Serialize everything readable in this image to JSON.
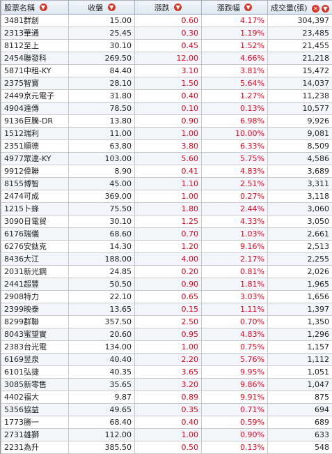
{
  "headers": {
    "name": "股票名稱",
    "close": "收盤",
    "change": "漲跌",
    "pct": "漲跌幅",
    "volume": "成交量(張)"
  },
  "colors": {
    "up": "#e8001c",
    "header_bg": "#e3ebf4",
    "icon": "#d23a2a"
  },
  "icons": {
    "sort": "sort-down-icon",
    "close": "close-icon"
  },
  "rows": [
    {
      "name": "3481群創",
      "close": "15.00",
      "change": "0.60",
      "pct": "4.17%",
      "volume": "304,397"
    },
    {
      "name": "2313華通",
      "close": "25.45",
      "change": "0.30",
      "pct": "1.19%",
      "volume": "23,485"
    },
    {
      "name": "8112至上",
      "close": "30.10",
      "change": "0.45",
      "pct": "1.52%",
      "volume": "21,455"
    },
    {
      "name": "2454聯發科",
      "close": "269.50",
      "change": "12.00",
      "pct": "4.66%",
      "volume": "21,218"
    },
    {
      "name": "5871中租-KY",
      "close": "84.40",
      "change": "3.10",
      "pct": "3.81%",
      "volume": "15,472"
    },
    {
      "name": "2375智寶",
      "close": "28.10",
      "change": "1.50",
      "pct": "5.64%",
      "volume": "14,037"
    },
    {
      "name": "2449京元電子",
      "close": "31.80",
      "change": "0.40",
      "pct": "1.27%",
      "volume": "11,238"
    },
    {
      "name": "4904遠傳",
      "close": "78.50",
      "change": "0.10",
      "pct": "0.13%",
      "volume": "10,577"
    },
    {
      "name": "9136巨騰-DR",
      "close": "13.80",
      "change": "0.90",
      "pct": "6.98%",
      "volume": "9,926"
    },
    {
      "name": "1512瑞利",
      "close": "11.00",
      "change": "1.00",
      "pct": "10.00%",
      "volume": "9,081"
    },
    {
      "name": "2351順德",
      "close": "63.80",
      "change": "3.80",
      "pct": "6.33%",
      "volume": "8,509"
    },
    {
      "name": "4977眾達-KY",
      "close": "103.00",
      "change": "5.60",
      "pct": "5.75%",
      "volume": "4,586"
    },
    {
      "name": "9912偉聯",
      "close": "8.90",
      "change": "0.41",
      "pct": "4.83%",
      "volume": "3,689"
    },
    {
      "name": "8155博智",
      "close": "45.00",
      "change": "1.10",
      "pct": "2.51%",
      "volume": "3,311"
    },
    {
      "name": "2474可成",
      "close": "369.00",
      "change": "1.00",
      "pct": "0.27%",
      "volume": "3,118"
    },
    {
      "name": "1215卜蜂",
      "close": "75.50",
      "change": "1.80",
      "pct": "2.44%",
      "volume": "3,060"
    },
    {
      "name": "3090日電貿",
      "close": "30.10",
      "change": "1.25",
      "pct": "4.33%",
      "volume": "3,050"
    },
    {
      "name": "6176瑞儀",
      "close": "68.60",
      "change": "0.70",
      "pct": "1.03%",
      "volume": "2,661"
    },
    {
      "name": "6276安鈦克",
      "close": "14.30",
      "change": "1.20",
      "pct": "9.16%",
      "volume": "2,513"
    },
    {
      "name": "8436大江",
      "close": "188.00",
      "change": "4.00",
      "pct": "2.17%",
      "volume": "2,255"
    },
    {
      "name": "2031新光鋼",
      "close": "24.85",
      "change": "0.20",
      "pct": "0.81%",
      "volume": "2,026"
    },
    {
      "name": "2441超豐",
      "close": "50.50",
      "change": "0.90",
      "pct": "1.81%",
      "volume": "1,965"
    },
    {
      "name": "2908特力",
      "close": "22.10",
      "change": "0.65",
      "pct": "3.03%",
      "volume": "1,656"
    },
    {
      "name": "2399映泰",
      "close": "13.65",
      "change": "0.15",
      "pct": "1.11%",
      "volume": "1,397"
    },
    {
      "name": "8299群聯",
      "close": "357.50",
      "change": "2.50",
      "pct": "0.70%",
      "volume": "1,350"
    },
    {
      "name": "8043蜜望實",
      "close": "20.60",
      "change": "0.95",
      "pct": "4.83%",
      "volume": "1,296"
    },
    {
      "name": "2383台光電",
      "close": "134.00",
      "change": "1.00",
      "pct": "0.75%",
      "volume": "1,157"
    },
    {
      "name": "6169昱泉",
      "close": "40.40",
      "change": "2.20",
      "pct": "5.76%",
      "volume": "1,112"
    },
    {
      "name": "6101弘捷",
      "close": "40.35",
      "change": "3.65",
      "pct": "9.95%",
      "volume": "1,051"
    },
    {
      "name": "3085新零售",
      "close": "35.65",
      "change": "3.20",
      "pct": "9.86%",
      "volume": "1,047"
    },
    {
      "name": "4402福大",
      "close": "9.87",
      "change": "0.89",
      "pct": "9.91%",
      "volume": "875"
    },
    {
      "name": "5356協益",
      "close": "49.65",
      "change": "0.35",
      "pct": "0.71%",
      "volume": "694"
    },
    {
      "name": "1773勝一",
      "close": "68.40",
      "change": "0.40",
      "pct": "0.59%",
      "volume": "689"
    },
    {
      "name": "2731雄獅",
      "close": "112.00",
      "change": "1.00",
      "pct": "0.90%",
      "volume": "633"
    },
    {
      "name": "2231為升",
      "close": "385.50",
      "change": "0.50",
      "pct": "0.13%",
      "volume": "548"
    }
  ]
}
